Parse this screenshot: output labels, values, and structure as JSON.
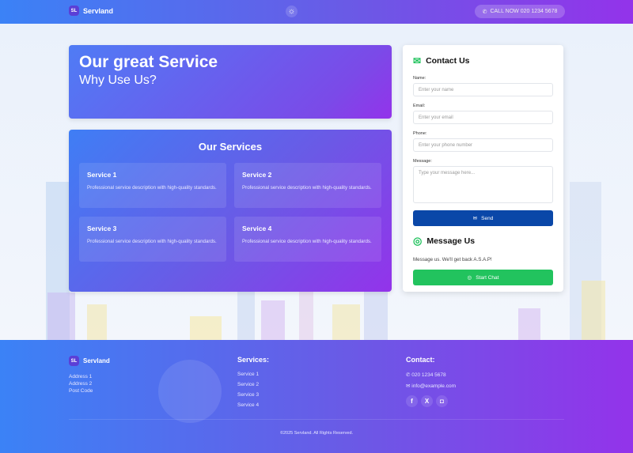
{
  "header": {
    "logo_badge": "SL",
    "brand": "Servland",
    "call": "CALL NOW 020 1234 5678",
    "theme_icon": "sun-icon"
  },
  "hero": {
    "title": "Our great Service",
    "subtitle": "Why Use Us?"
  },
  "services": {
    "title": "Our Services",
    "items": [
      {
        "title": "Service 1",
        "desc": "Professional service description with high-quality standards."
      },
      {
        "title": "Service 2",
        "desc": "Professional service description with high-quality standards."
      },
      {
        "title": "Service 3",
        "desc": "Professional service description with high-quality standards."
      },
      {
        "title": "Service 4",
        "desc": "Professional service description with high-quality standards."
      }
    ]
  },
  "contact": {
    "title": "Contact Us",
    "name_label": "Name:",
    "name_placeholder": "Enter your name",
    "email_label": "Email:",
    "email_placeholder": "Enter your email",
    "phone_label": "Phone:",
    "phone_placeholder": "Enter your phone number",
    "message_label": "Message:",
    "message_placeholder": "Type your message here...",
    "send": "Send",
    "message_title": "Message Us",
    "message_text": "Message us. We'll get back A.S.A.P!",
    "chat": "Start Chat"
  },
  "footer": {
    "logo_badge": "SL",
    "brand": "Servland",
    "address": [
      "Address 1",
      "Address 2",
      "Post Code"
    ],
    "services_title": "Services:",
    "services": [
      "Service 1",
      "Service 2",
      "Service 3",
      "Service 4"
    ],
    "contact_title": "Contact:",
    "phone": "020 1234 5678",
    "email": "info@example.com",
    "social": [
      "facebook",
      "x",
      "instagram"
    ],
    "copyright": "©2025 Servland. All Rights Reserved."
  },
  "colors": {
    "gradient_start": "#3b82f6",
    "gradient_end": "#9333ea",
    "send": "#0a47a8",
    "chat": "#22c35e"
  }
}
